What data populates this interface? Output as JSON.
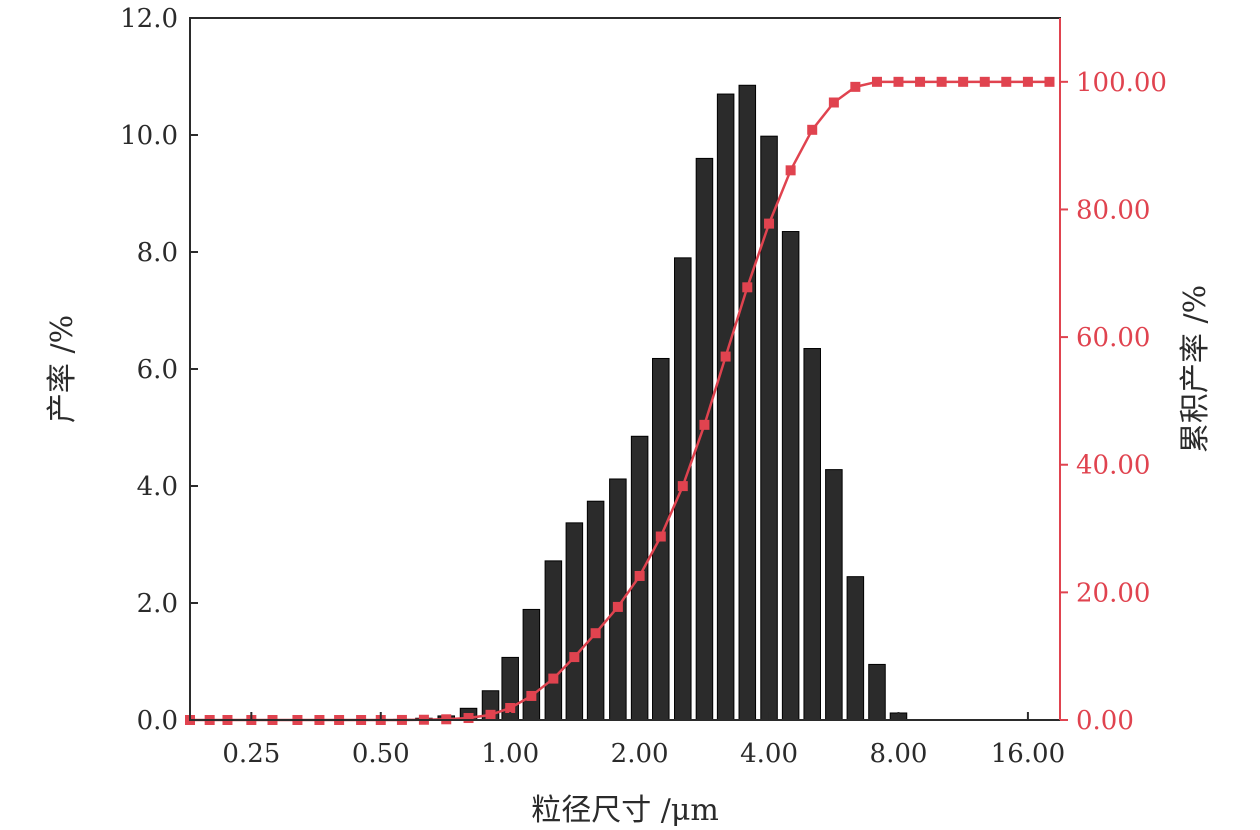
{
  "chart_data": {
    "type": "bar",
    "xlabel": "粒径尺寸 /μm",
    "ylabel_left": "产率 /%",
    "ylabel_right": "累积产率 /%",
    "x_scale": "log2",
    "xlim": [
      0.18,
      19.0
    ],
    "ylim_left": [
      0,
      12
    ],
    "ylim_right": [
      0,
      110
    ],
    "x_ticks": [
      0.25,
      0.5,
      1,
      2,
      4,
      8,
      16
    ],
    "x_tick_labels": [
      "0.25",
      "0.50",
      "1.00",
      "2.00",
      "4.00",
      "8.00",
      "16.00"
    ],
    "y_left_ticks": [
      0,
      2,
      4,
      6,
      8,
      10,
      12
    ],
    "y_left_tick_labels": [
      "0.0",
      "2.0",
      "4.0",
      "6.0",
      "8.0",
      "10.0",
      "12.0"
    ],
    "y_right_ticks": [
      0,
      20,
      40,
      60,
      80,
      100
    ],
    "y_right_tick_labels": [
      "0.00",
      "20.00",
      "40.00",
      "60.00",
      "80.00",
      "100.00"
    ],
    "bar_color": "#2b2b2b",
    "line_color": "#e0434f",
    "series": [
      {
        "kind": "bar",
        "axis": "left",
        "x": [
          0.18,
          0.2,
          0.22,
          0.25,
          0.28,
          0.32,
          0.36,
          0.4,
          0.45,
          0.5,
          0.56,
          0.63,
          0.71,
          0.8,
          0.9,
          1.0,
          1.12,
          1.26,
          1.41,
          1.58,
          1.78,
          2.0,
          2.24,
          2.52,
          2.83,
          3.17,
          3.56,
          4.0,
          4.49,
          5.04,
          5.66,
          6.35,
          7.13,
          8.0,
          8.98,
          10.08,
          11.31,
          12.7,
          14.25,
          16.0,
          17.96
        ],
        "values": [
          0,
          0,
          0,
          0,
          0,
          0,
          0,
          0,
          0,
          0,
          0.01,
          0.03,
          0.07,
          0.2,
          0.5,
          1.07,
          1.89,
          2.72,
          3.37,
          3.74,
          4.12,
          4.85,
          6.18,
          7.9,
          9.6,
          10.7,
          10.85,
          9.98,
          8.35,
          6.35,
          4.28,
          2.45,
          0.95,
          0.12,
          0,
          0,
          0,
          0,
          0,
          0,
          0
        ]
      },
      {
        "kind": "line",
        "axis": "right",
        "x": [
          0.18,
          0.2,
          0.22,
          0.25,
          0.28,
          0.32,
          0.36,
          0.4,
          0.45,
          0.5,
          0.56,
          0.63,
          0.71,
          0.8,
          0.9,
          1.0,
          1.12,
          1.26,
          1.41,
          1.58,
          1.78,
          2.0,
          2.24,
          2.52,
          2.83,
          3.17,
          3.56,
          4.0,
          4.49,
          5.04,
          5.66,
          6.35,
          7.13,
          8.0,
          8.98,
          10.08,
          11.31,
          12.7,
          14.25,
          16.0,
          17.96
        ],
        "values": [
          0,
          0,
          0,
          0,
          0,
          0,
          0,
          0,
          0,
          0,
          0.01,
          0.04,
          0.11,
          0.31,
          0.81,
          1.88,
          3.77,
          6.49,
          9.86,
          13.6,
          17.72,
          22.57,
          28.75,
          36.65,
          46.25,
          56.95,
          67.8,
          77.78,
          86.13,
          92.48,
          96.76,
          99.21,
          100.0,
          100.0,
          100.0,
          100.0,
          100.0,
          100.0,
          100.0,
          100.0,
          100.0
        ]
      }
    ]
  }
}
